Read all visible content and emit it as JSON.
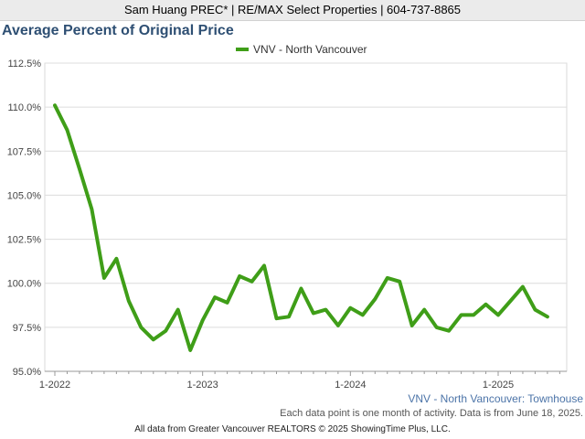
{
  "header": {
    "agent_line": "Sam Huang PREC* | RE/MAX Select Properties | 604-737-8865"
  },
  "chart_data": {
    "type": "line",
    "title": "Average Percent of Original Price",
    "legend": "top-center",
    "grid": true,
    "ylim": [
      95.0,
      112.5
    ],
    "y_ticks": [
      "112.5%",
      "110.0%",
      "107.5%",
      "105.0%",
      "102.5%",
      "100.0%",
      "97.5%",
      "95.0%"
    ],
    "x_ticks": [
      "1-2022",
      "1-2023",
      "1-2024",
      "1-2025"
    ],
    "series": [
      {
        "name": "VNV - North Vancouver",
        "color": "#3f9e18",
        "x": [
          "1-2022",
          "2-2022",
          "3-2022",
          "4-2022",
          "5-2022",
          "6-2022",
          "7-2022",
          "8-2022",
          "9-2022",
          "10-2022",
          "11-2022",
          "12-2022",
          "1-2023",
          "2-2023",
          "3-2023",
          "4-2023",
          "5-2023",
          "6-2023",
          "7-2023",
          "8-2023",
          "9-2023",
          "10-2023",
          "11-2023",
          "12-2023",
          "1-2024",
          "2-2024",
          "3-2024",
          "4-2024",
          "5-2024",
          "6-2024",
          "7-2024",
          "8-2024",
          "9-2024",
          "10-2024",
          "11-2024",
          "12-2024",
          "1-2025",
          "2-2025",
          "3-2025",
          "4-2025",
          "5-2025"
        ],
        "values": [
          110.1,
          108.7,
          106.5,
          104.2,
          100.3,
          101.4,
          99.0,
          97.5,
          96.8,
          97.3,
          98.5,
          96.2,
          97.9,
          99.2,
          98.9,
          100.4,
          100.1,
          101.0,
          98.0,
          98.1,
          99.7,
          98.3,
          98.5,
          97.6,
          98.6,
          98.2,
          99.1,
          100.3,
          100.1,
          97.6,
          98.5,
          97.5,
          97.3,
          98.2,
          98.2,
          98.8,
          98.2,
          99.0,
          99.8,
          98.5,
          98.1
        ]
      }
    ],
    "series_caption": "VNV - North Vancouver: Townhouse",
    "note": "Each data point is one month of activity. Data is from June 18, 2025."
  },
  "footer": {
    "credit": "All data from Greater Vancouver REALTORS © 2025 ShowingTime Plus, LLC."
  }
}
